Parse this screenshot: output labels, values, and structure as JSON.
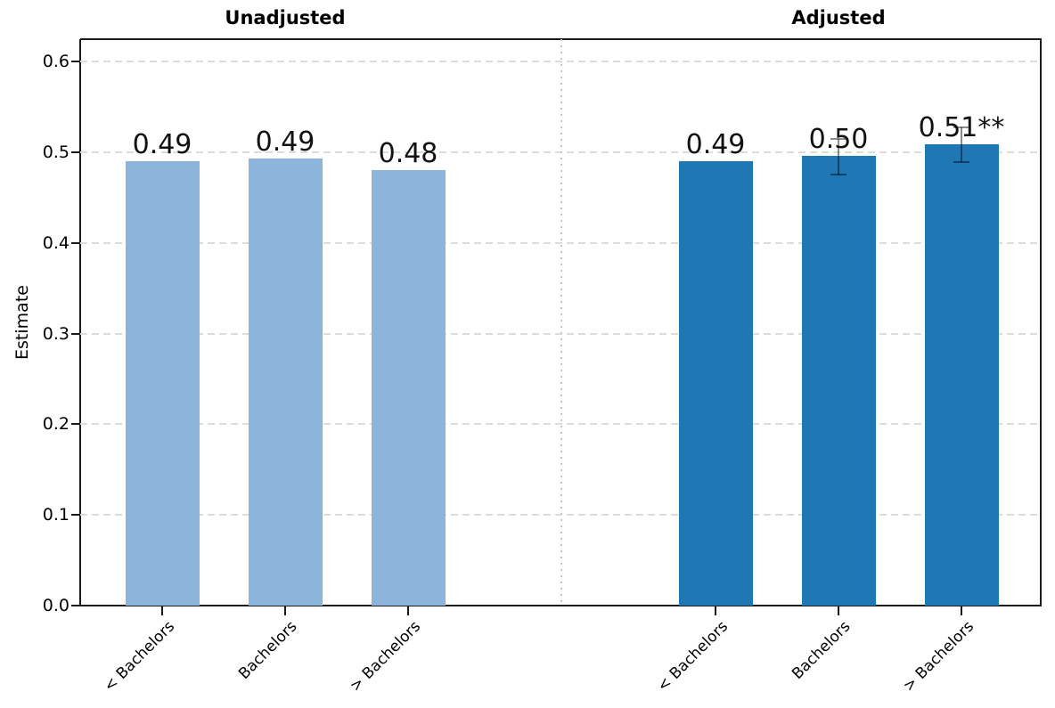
{
  "chart_data": {
    "type": "bar",
    "title": "",
    "ylabel": "Estimate",
    "xlabel": "",
    "ylim": [
      0,
      0.625
    ],
    "yticks": [
      0,
      0.1,
      0.2,
      0.3,
      0.4,
      0.5,
      0.6
    ],
    "ytick_labels": [
      "0.0",
      "0.1",
      "0.2",
      "0.3",
      "0.4",
      "0.5",
      "0.6"
    ],
    "categories": [
      "< Bachelors",
      "Bachelors",
      "> Bachelors"
    ],
    "grid": {
      "axis": "y",
      "style": "dashed",
      "on": true
    },
    "legend": {
      "shown": false
    },
    "colors": {
      "unadjusted_bar": "#8db5dc",
      "adjusted_bar": "#1f77b4",
      "error_bar": "rgba(0,0,0,0.45)",
      "gridline": "#dcdcdc",
      "panel_divider": "#c6c6c6",
      "spine": "#1a1a1a",
      "background": "#ffffff"
    },
    "panels": [
      {
        "title": "Unadjusted",
        "bar_color": "#8db5dc",
        "bars": [
          {
            "category": "< Bachelors",
            "value": 0.49,
            "label": "0.49",
            "ci_low": null,
            "ci_high": null
          },
          {
            "category": "Bachelors",
            "value": 0.493,
            "label": "0.49",
            "ci_low": null,
            "ci_high": null
          },
          {
            "category": "> Bachelors",
            "value": 0.481,
            "label": "0.48",
            "ci_low": null,
            "ci_high": null
          }
        ]
      },
      {
        "title": "Adjusted",
        "bar_color": "#1f77b4",
        "bars": [
          {
            "category": "< Bachelors",
            "value": 0.49,
            "label": "0.49",
            "ci_low": null,
            "ci_high": null
          },
          {
            "category": "Bachelors",
            "value": 0.496,
            "label": "0.50",
            "ci_low": 0.476,
            "ci_high": 0.515
          },
          {
            "category": "> Bachelors",
            "value": 0.509,
            "label": "0.51**",
            "ci_low": 0.489,
            "ci_high": 0.528
          }
        ]
      }
    ]
  }
}
